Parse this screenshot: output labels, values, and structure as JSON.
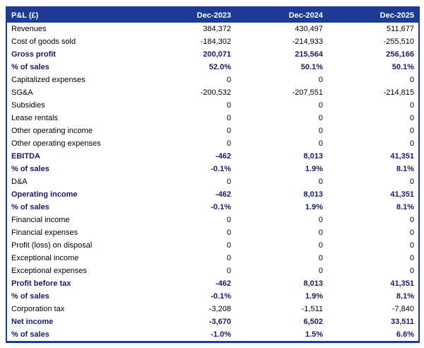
{
  "colors": {
    "header_background": "#1B3B94",
    "header_text": "#FFFFFF",
    "bold_row_text": "#191970",
    "normal_row_text": "#000000",
    "table_border": "#1B3B94",
    "page_background": "#FFFFFF"
  },
  "chart_data": {
    "type": "table",
    "title": "P&L (£)",
    "header": [
      "P&L (£)",
      "Dec-2023",
      "Dec-2024",
      "Dec-2025"
    ],
    "rows": [
      {
        "label": "Revenues",
        "values": [
          "384,372",
          "430,497",
          "511,677"
        ],
        "style": "normal"
      },
      {
        "label": "Cost of goods sold",
        "values": [
          "-184,302",
          "-214,933",
          "-255,510"
        ],
        "style": "normal"
      },
      {
        "label": "Gross profit",
        "values": [
          "200,071",
          "215,564",
          "256,166"
        ],
        "style": "bold"
      },
      {
        "label": "% of sales",
        "values": [
          "52.0%",
          "50.1%",
          "50.1%"
        ],
        "style": "bold"
      },
      {
        "label": "Capitalized expenses",
        "values": [
          "0",
          "0",
          "0"
        ],
        "style": "normal"
      },
      {
        "label": "SG&A",
        "values": [
          "-200,532",
          "-207,551",
          "-214,815"
        ],
        "style": "normal"
      },
      {
        "label": "Subsidies",
        "values": [
          "0",
          "0",
          "0"
        ],
        "style": "normal"
      },
      {
        "label": "Lease rentals",
        "values": [
          "0",
          "0",
          "0"
        ],
        "style": "normal"
      },
      {
        "label": "Other operating income",
        "values": [
          "0",
          "0",
          "0"
        ],
        "style": "normal"
      },
      {
        "label": "Other operating expenses",
        "values": [
          "0",
          "0",
          "0"
        ],
        "style": "normal"
      },
      {
        "label": "EBITDA",
        "values": [
          "-462",
          "8,013",
          "41,351"
        ],
        "style": "bold"
      },
      {
        "label": "% of sales",
        "values": [
          "-0.1%",
          "1.9%",
          "8.1%"
        ],
        "style": "bold"
      },
      {
        "label": "D&A",
        "values": [
          "0",
          "0",
          "0"
        ],
        "style": "normal"
      },
      {
        "label": "Operating income",
        "values": [
          "-462",
          "8,013",
          "41,351"
        ],
        "style": "bold"
      },
      {
        "label": "% of sales",
        "values": [
          "-0.1%",
          "1.9%",
          "8.1%"
        ],
        "style": "bold"
      },
      {
        "label": "Financial income",
        "values": [
          "0",
          "0",
          "0"
        ],
        "style": "normal"
      },
      {
        "label": "Financial expenses",
        "values": [
          "0",
          "0",
          "0"
        ],
        "style": "normal"
      },
      {
        "label": "Profit (loss) on disposal",
        "values": [
          "0",
          "0",
          "0"
        ],
        "style": "normal"
      },
      {
        "label": "Exceptional income",
        "values": [
          "0",
          "0",
          "0"
        ],
        "style": "normal"
      },
      {
        "label": "Exceptional expenses",
        "values": [
          "0",
          "0",
          "0"
        ],
        "style": "normal"
      },
      {
        "label": "Profit before tax",
        "values": [
          "-462",
          "8,013",
          "41,351"
        ],
        "style": "bold"
      },
      {
        "label": "% of sales",
        "values": [
          "-0.1%",
          "1.9%",
          "8.1%"
        ],
        "style": "bold"
      },
      {
        "label": "Corporation tax",
        "values": [
          "-3,208",
          "-1,511",
          "-7,840"
        ],
        "style": "normal"
      },
      {
        "label": "Net income",
        "values": [
          "-3,670",
          "6,502",
          "33,511"
        ],
        "style": "bold"
      },
      {
        "label": "% of sales",
        "values": [
          "-1.0%",
          "1.5%",
          "6.6%"
        ],
        "style": "bold"
      }
    ]
  }
}
